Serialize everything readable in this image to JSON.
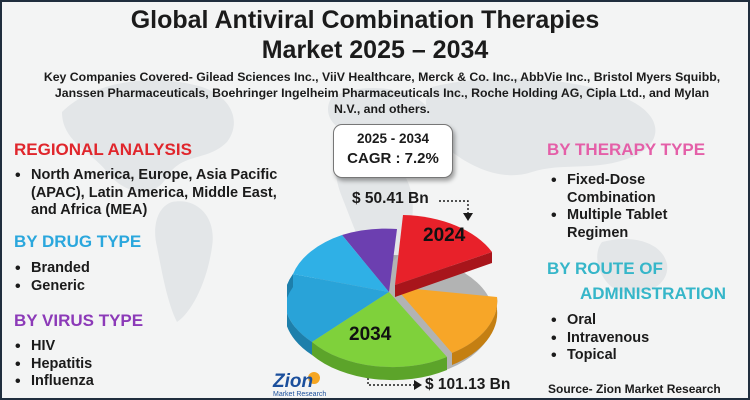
{
  "title_line1": "Global Antiviral Combination Therapies",
  "title_line2": "Market 2025 – 2034",
  "companies": "Key Companies Covered- Gilead Sciences Inc., ViiV Healthcare, Merck & Co. Inc., AbbVie Inc., Bristol Myers Squibb, Janssen Pharmaceuticals, Boehringer Ingelheim Pharmaceuticals Inc., Roche Holding AG, Cipla Ltd., and Mylan N.V., and others.",
  "regional": {
    "heading": "REGIONAL ANALYSIS",
    "items": [
      "North America, Europe, Asia Pacific (APAC), Latin America, Middle East, and Africa (MEA)"
    ]
  },
  "drug_type": {
    "heading": "BY DRUG TYPE",
    "items": [
      "Branded",
      "Generic"
    ]
  },
  "virus_type": {
    "heading": "BY VIRUS TYPE",
    "items": [
      "HIV",
      "Hepatitis",
      "Influenza"
    ]
  },
  "therapy_type": {
    "heading": "BY THERAPY TYPE",
    "items": [
      "Fixed-Dose Combination",
      "Multiple Tablet Regimen"
    ]
  },
  "route": {
    "heading_line1": "BY ROUTE OF",
    "heading_line2": "ADMINISTRATION",
    "items": [
      "Oral",
      "Intravenous",
      "Topical"
    ]
  },
  "cagr": {
    "period": "2025 - 2034",
    "label": "CAGR : 7.2%"
  },
  "value_2024": "$ 50.41 Bn",
  "value_2034": "$ 101.13 Bn",
  "pie": {
    "label_2024": "2024",
    "label_2034": "2034"
  },
  "logo": {
    "name": "Zion",
    "sub": "Market Research"
  },
  "source": "Source- Zion Market Research",
  "colors": {
    "red": "#e0262c",
    "blue": "#2aa7dd",
    "purple": "#8c3ab8",
    "pink": "#e45fa8",
    "teal": "#36b6c9",
    "slice_red": "#e8212a",
    "slice_orange": "#f7a628",
    "slice_green": "#7fd13b",
    "slice_blue": "#29a3d8",
    "slice_purple": "#6c3fb0"
  }
}
